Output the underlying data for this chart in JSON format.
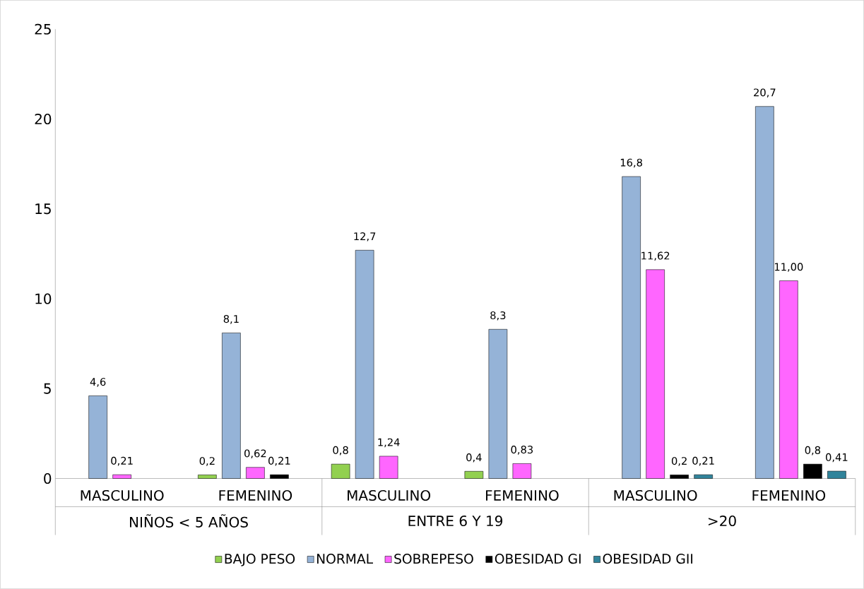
{
  "chart_data": {
    "type": "bar",
    "categories": [
      "MASCULINO",
      "FEMENINO",
      "MASCULINO",
      "FEMENINO",
      "MASCULINO",
      "FEMENINO"
    ],
    "annotations": [
      "NIÑOS < 5 AÑOS",
      "ENTRE 6 Y 19",
      ">20"
    ],
    "series": [
      {
        "name": "BAJO PESO",
        "color": "#92d050",
        "values": [
          null,
          0.2,
          0.8,
          0.4,
          null,
          null
        ],
        "value_labels": [
          null,
          "0,2",
          "0,8",
          "0,4",
          null,
          null
        ]
      },
      {
        "name": "NORMAL",
        "color": "#95b3d7",
        "values": [
          4.6,
          8.1,
          12.7,
          8.3,
          16.8,
          20.7
        ],
        "value_labels": [
          "4,6",
          "8,1",
          "12,7",
          "8,3",
          "16,8",
          "20,7"
        ]
      },
      {
        "name": "SOBREPESO",
        "color": "#ff66ff",
        "values": [
          0.21,
          0.62,
          1.24,
          0.83,
          11.62,
          11.0
        ],
        "value_labels": [
          "0,21",
          "0,62",
          "1,24",
          "0,83",
          "11,62",
          "11,00"
        ]
      },
      {
        "name": "OBESIDAD GI",
        "color": "#000000",
        "values": [
          null,
          0.21,
          null,
          null,
          0.2,
          0.8
        ],
        "value_labels": [
          null,
          "0,21",
          null,
          null,
          "0,2",
          "0,8"
        ]
      },
      {
        "name": "OBESIDAD GII",
        "color": "#31849b",
        "values": [
          null,
          null,
          null,
          null,
          0.21,
          0.41
        ],
        "value_labels": [
          null,
          null,
          null,
          null,
          "0,21",
          "0,41"
        ]
      }
    ],
    "ylim": [
      0,
      25
    ],
    "yticks": [
      0,
      5,
      10,
      15,
      20,
      25
    ],
    "legend": "bottom"
  }
}
